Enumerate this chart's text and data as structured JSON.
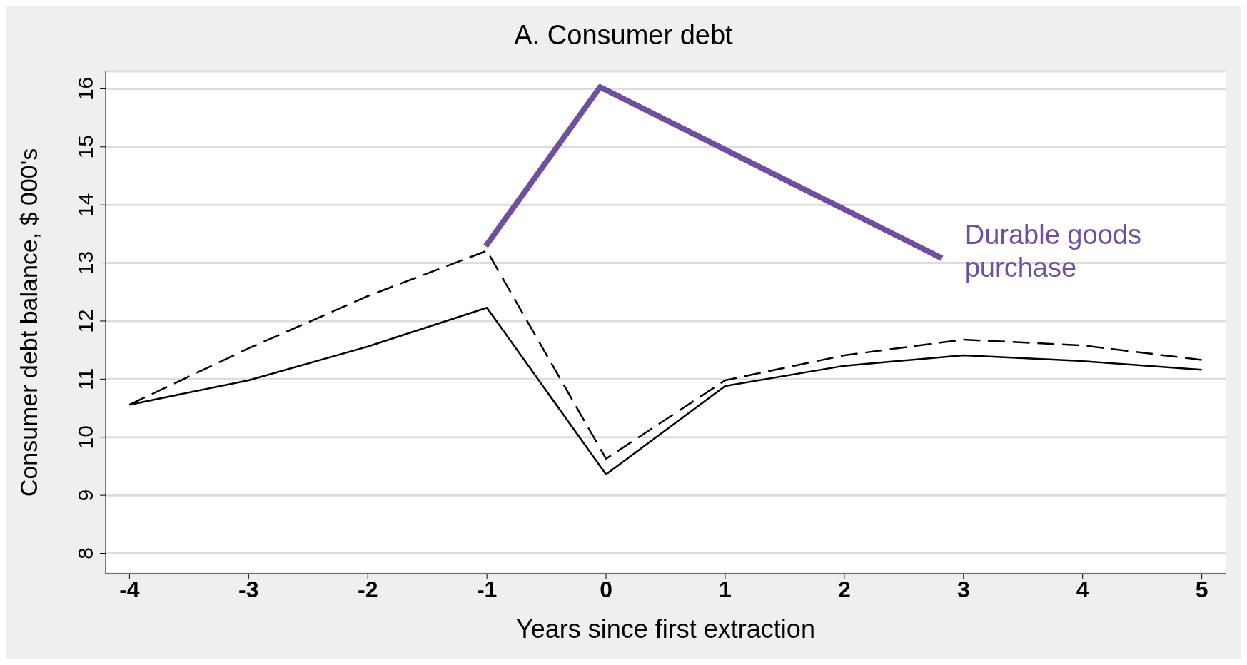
{
  "chart_data": {
    "type": "line",
    "title": "A. Consumer debt",
    "xlabel": "Years since first extraction",
    "ylabel": "Consumer debt balance, $ 000's",
    "x": [
      -4,
      -3,
      -2,
      -1,
      0,
      1,
      2,
      3,
      4,
      5
    ],
    "xlim": [
      -4.2,
      5.2
    ],
    "xticks": [
      -4,
      -3,
      -2,
      -1,
      0,
      1,
      2,
      3,
      4,
      5
    ],
    "ylim": [
      7.65,
      16.3
    ],
    "yticks": [
      8,
      9,
      10,
      11,
      12,
      13,
      14,
      15,
      16
    ],
    "grid": "y",
    "marker": "none",
    "series": [
      {
        "color": "#000000",
        "line_style": "solid",
        "values": [
          10.56,
          10.98,
          11.56,
          12.23,
          9.36,
          10.88,
          11.23,
          11.41,
          11.31,
          11.16
        ]
      },
      {
        "color": "#000000",
        "line_style": "dashed",
        "values": [
          10.56,
          11.53,
          12.43,
          13.21,
          9.63,
          10.98,
          11.41,
          11.68,
          11.58,
          11.33
        ]
      },
      {
        "name": "Durable goods purchase",
        "color": "#6f50a0",
        "line_style": "solid",
        "x": [
          -1.01,
          -0.05,
          2.82
        ],
        "values": [
          13.29,
          16.03,
          13.08
        ]
      }
    ]
  }
}
